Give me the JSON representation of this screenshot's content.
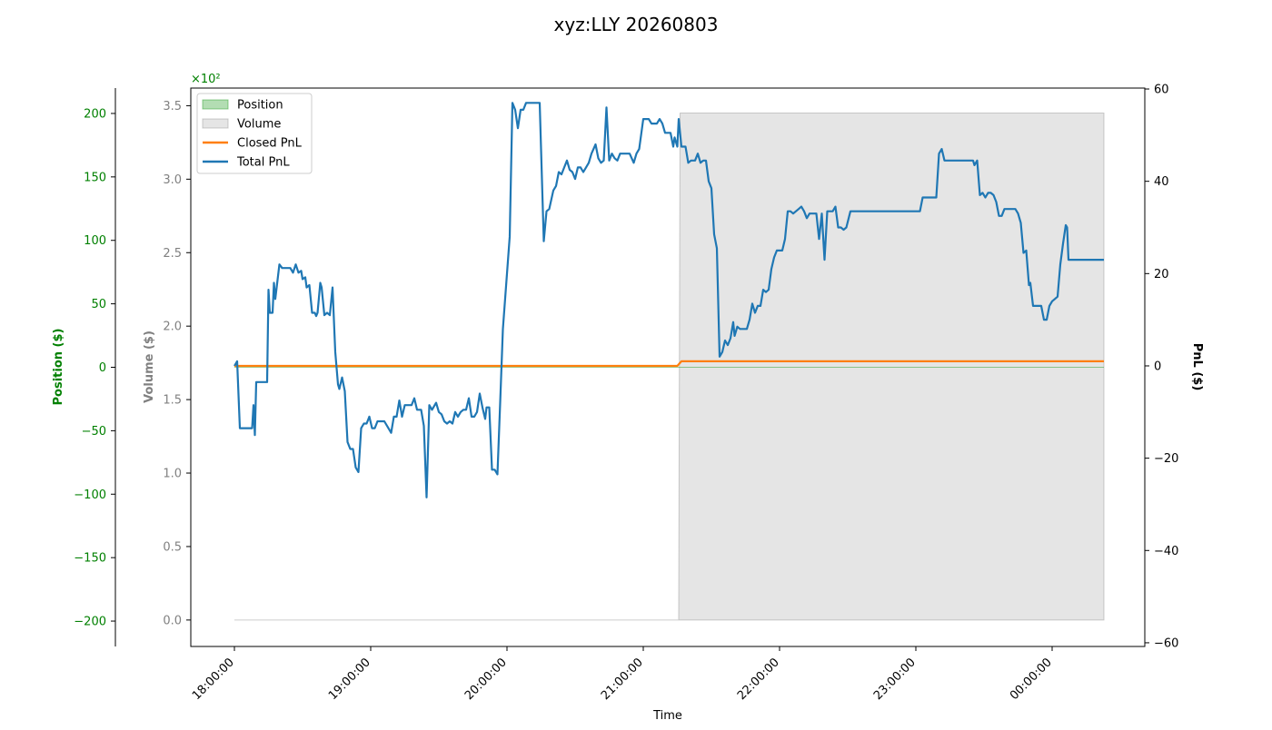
{
  "chart_data": {
    "type": "line",
    "title": "xyz:LLY 20260803",
    "xlabel": "Time",
    "x_ticks": [
      "18:00:00",
      "19:00:00",
      "20:00:00",
      "21:00:00",
      "22:00:00",
      "23:00:00",
      "00:00:00"
    ],
    "axes": {
      "position": {
        "label": "Position ($)",
        "ticks": [
          "200",
          "150",
          "100",
          "50",
          "0",
          "−50",
          "−100",
          "−150",
          "−200"
        ],
        "range": [
          -220,
          220
        ],
        "color": "#008000"
      },
      "volume": {
        "label": "Volume ($)",
        "ticks": [
          "3.5",
          "3.0",
          "2.5",
          "2.0",
          "1.5",
          "1.0",
          "0.5",
          "0.0"
        ],
        "offset_text": "×10²",
        "range": [
          -18,
          362
        ],
        "color": "#808080"
      },
      "pnl": {
        "label": "PnL ($)",
        "ticks": [
          "60",
          "40",
          "20",
          "0",
          "−20",
          "−40",
          "−60"
        ],
        "range": [
          -60.8,
          60.2
        ],
        "color": "#000000"
      }
    },
    "legend": {
      "placement": "top-left",
      "entries": [
        "Position",
        "Volume",
        "Closed PnL",
        "Total PnL"
      ]
    },
    "series": [
      {
        "name": "Position",
        "kind": "area",
        "axis": "position",
        "color": "#2ca02c",
        "points": [
          [
            18.0,
            0
          ],
          [
            21.26,
            0
          ],
          [
            21.3,
            0
          ],
          [
            24.38,
            0
          ]
        ]
      },
      {
        "name": "Volume",
        "kind": "area",
        "axis": "volume",
        "color": "#999999",
        "points": [
          [
            18.0,
            0
          ],
          [
            21.26,
            0
          ],
          [
            21.27,
            345
          ],
          [
            24.38,
            345
          ]
        ]
      },
      {
        "name": "Closed PnL",
        "kind": "line",
        "axis": "pnl",
        "color": "#ff7f0e",
        "points": [
          [
            18.0,
            0
          ],
          [
            21.25,
            0
          ],
          [
            21.28,
            1
          ],
          [
            24.38,
            1
          ]
        ]
      },
      {
        "name": "Total PnL",
        "kind": "line",
        "axis": "pnl",
        "color": "#1f77b4",
        "points": [
          [
            18.0,
            0
          ],
          [
            18.02,
            1
          ],
          [
            18.04,
            -13.5
          ],
          [
            18.13,
            -13.5
          ],
          [
            18.14,
            -8.5
          ],
          [
            18.15,
            -15
          ],
          [
            18.16,
            -3.5
          ],
          [
            18.24,
            -3.5
          ],
          [
            18.25,
            16.5
          ],
          [
            18.26,
            11.5
          ],
          [
            18.28,
            11.5
          ],
          [
            18.29,
            18
          ],
          [
            18.3,
            14.5
          ],
          [
            18.33,
            22
          ],
          [
            18.35,
            21.2
          ],
          [
            18.41,
            21.2
          ],
          [
            18.43,
            20.2
          ],
          [
            18.45,
            22
          ],
          [
            18.47,
            20.2
          ],
          [
            18.49,
            20.6
          ],
          [
            18.5,
            18.8
          ],
          [
            18.52,
            19.2
          ],
          [
            18.53,
            17
          ],
          [
            18.55,
            17.5
          ],
          [
            18.57,
            11.5
          ],
          [
            18.59,
            11.5
          ],
          [
            18.6,
            10.8
          ],
          [
            18.61,
            11.5
          ],
          [
            18.63,
            18
          ],
          [
            18.64,
            17
          ],
          [
            18.66,
            11
          ],
          [
            18.68,
            11.5
          ],
          [
            18.7,
            11
          ],
          [
            18.72,
            17
          ],
          [
            18.74,
            3
          ],
          [
            18.76,
            -4
          ],
          [
            18.77,
            -5
          ],
          [
            18.79,
            -2.5
          ],
          [
            18.81,
            -5.5
          ],
          [
            18.83,
            -16.5
          ],
          [
            18.85,
            -18
          ],
          [
            18.87,
            -18
          ],
          [
            18.89,
            -22
          ],
          [
            18.91,
            -23
          ],
          [
            18.93,
            -13.5
          ],
          [
            18.95,
            -12.5
          ],
          [
            18.97,
            -12.5
          ],
          [
            18.99,
            -11
          ],
          [
            19.01,
            -13.5
          ],
          [
            19.03,
            -13.5
          ],
          [
            19.05,
            -12
          ],
          [
            19.1,
            -12
          ],
          [
            19.13,
            -13.5
          ],
          [
            19.15,
            -14.5
          ],
          [
            19.17,
            -11
          ],
          [
            19.19,
            -11
          ],
          [
            19.21,
            -7.5
          ],
          [
            19.23,
            -11
          ],
          [
            19.25,
            -8.5
          ],
          [
            19.27,
            -8.5
          ],
          [
            19.3,
            -8.5
          ],
          [
            19.32,
            -7
          ],
          [
            19.34,
            -9.5
          ],
          [
            19.37,
            -9.5
          ],
          [
            19.39,
            -13
          ],
          [
            19.41,
            -28.5
          ],
          [
            19.43,
            -8.5
          ],
          [
            19.45,
            -9.5
          ],
          [
            19.48,
            -8
          ],
          [
            19.5,
            -10
          ],
          [
            19.52,
            -10.5
          ],
          [
            19.54,
            -12
          ],
          [
            19.56,
            -12.5
          ],
          [
            19.58,
            -12
          ],
          [
            19.6,
            -12.5
          ],
          [
            19.62,
            -10
          ],
          [
            19.64,
            -11
          ],
          [
            19.66,
            -10
          ],
          [
            19.68,
            -9.5
          ],
          [
            19.7,
            -9.5
          ],
          [
            19.72,
            -7
          ],
          [
            19.74,
            -11
          ],
          [
            19.76,
            -11
          ],
          [
            19.78,
            -10
          ],
          [
            19.8,
            -6
          ],
          [
            19.82,
            -9
          ],
          [
            19.84,
            -11.5
          ],
          [
            19.85,
            -9
          ],
          [
            19.87,
            -9
          ],
          [
            19.89,
            -22.5
          ],
          [
            19.91,
            -22.5
          ],
          [
            19.93,
            -23.5
          ],
          [
            19.95,
            -8
          ],
          [
            19.97,
            8
          ],
          [
            20.02,
            28
          ],
          [
            20.04,
            57
          ],
          [
            20.06,
            55.5
          ],
          [
            20.08,
            51.5
          ],
          [
            20.1,
            55.5
          ],
          [
            20.12,
            55.5
          ],
          [
            20.14,
            57
          ],
          [
            20.24,
            57
          ],
          [
            20.27,
            27
          ],
          [
            20.29,
            33.5
          ],
          [
            20.31,
            34
          ],
          [
            20.34,
            38
          ],
          [
            20.36,
            39
          ],
          [
            20.38,
            42
          ],
          [
            20.4,
            41.5
          ],
          [
            20.42,
            43
          ],
          [
            20.44,
            44.5
          ],
          [
            20.46,
            42.5
          ],
          [
            20.48,
            42
          ],
          [
            20.5,
            40.5
          ],
          [
            20.52,
            43
          ],
          [
            20.54,
            43
          ],
          [
            20.56,
            42
          ],
          [
            20.58,
            43
          ],
          [
            20.6,
            44
          ],
          [
            20.62,
            46
          ],
          [
            20.65,
            48
          ],
          [
            20.67,
            45
          ],
          [
            20.69,
            44
          ],
          [
            20.71,
            44.5
          ],
          [
            20.73,
            56
          ],
          [
            20.75,
            44.5
          ],
          [
            20.77,
            46
          ],
          [
            20.79,
            45
          ],
          [
            20.81,
            44.5
          ],
          [
            20.83,
            46
          ],
          [
            20.85,
            46
          ],
          [
            20.9,
            46
          ],
          [
            20.93,
            44
          ],
          [
            20.95,
            46
          ],
          [
            20.97,
            47
          ],
          [
            21.0,
            53.5
          ],
          [
            21.04,
            53.5
          ],
          [
            21.06,
            52.5
          ],
          [
            21.1,
            52.5
          ],
          [
            21.12,
            53.5
          ],
          [
            21.14,
            52.5
          ],
          [
            21.16,
            50.5
          ],
          [
            21.18,
            50.5
          ],
          [
            21.2,
            50.5
          ],
          [
            21.22,
            47.5
          ],
          [
            21.23,
            49.5
          ],
          [
            21.25,
            47.5
          ],
          [
            21.26,
            53.5
          ],
          [
            21.28,
            47.5
          ],
          [
            21.31,
            47.5
          ],
          [
            21.33,
            44
          ],
          [
            21.35,
            44.5
          ],
          [
            21.38,
            44.5
          ],
          [
            21.4,
            46
          ],
          [
            21.42,
            44
          ],
          [
            21.44,
            44.5
          ],
          [
            21.46,
            44.5
          ],
          [
            21.48,
            40
          ],
          [
            21.5,
            38.5
          ],
          [
            21.52,
            28.5
          ],
          [
            21.54,
            25.5
          ],
          [
            21.56,
            2
          ],
          [
            21.58,
            3
          ],
          [
            21.6,
            5.5
          ],
          [
            21.62,
            4.5
          ],
          [
            21.64,
            6
          ],
          [
            21.66,
            9.5
          ],
          [
            21.67,
            6.5
          ],
          [
            21.69,
            8.5
          ],
          [
            21.71,
            8
          ],
          [
            21.73,
            8
          ],
          [
            21.76,
            8
          ],
          [
            21.78,
            10
          ],
          [
            21.8,
            13.5
          ],
          [
            21.82,
            11.5
          ],
          [
            21.84,
            13
          ],
          [
            21.86,
            13
          ],
          [
            21.88,
            16.5
          ],
          [
            21.9,
            16
          ],
          [
            21.92,
            16.5
          ],
          [
            21.94,
            21
          ],
          [
            21.96,
            23.5
          ],
          [
            21.98,
            25
          ],
          [
            22.0,
            25
          ],
          [
            22.02,
            25
          ],
          [
            22.04,
            27.5
          ],
          [
            22.06,
            33.5
          ],
          [
            22.08,
            33.5
          ],
          [
            22.1,
            33
          ],
          [
            22.12,
            33.5
          ],
          [
            22.14,
            34
          ],
          [
            22.16,
            34.5
          ],
          [
            22.18,
            33.5
          ],
          [
            22.2,
            32
          ],
          [
            22.22,
            33
          ],
          [
            22.24,
            33
          ],
          [
            22.27,
            33
          ],
          [
            22.29,
            27.5
          ],
          [
            22.31,
            33
          ],
          [
            22.33,
            23
          ],
          [
            22.35,
            33.5
          ],
          [
            22.37,
            33.5
          ],
          [
            22.39,
            33.5
          ],
          [
            22.41,
            34.5
          ],
          [
            22.43,
            30
          ],
          [
            22.45,
            30
          ],
          [
            22.47,
            29.5
          ],
          [
            22.49,
            30
          ],
          [
            22.52,
            33.5
          ],
          [
            22.55,
            33.5
          ],
          [
            23.03,
            33.5
          ],
          [
            23.05,
            36.5
          ],
          [
            23.15,
            36.5
          ],
          [
            23.17,
            46
          ],
          [
            23.19,
            47
          ],
          [
            23.21,
            44.5
          ],
          [
            23.42,
            44.5
          ],
          [
            23.43,
            43.5
          ],
          [
            23.45,
            44.5
          ],
          [
            23.47,
            37
          ],
          [
            23.49,
            37.5
          ],
          [
            23.51,
            36.5
          ],
          [
            23.53,
            37.5
          ],
          [
            23.55,
            37.5
          ],
          [
            23.57,
            37
          ],
          [
            23.59,
            35.5
          ],
          [
            23.61,
            32.5
          ],
          [
            23.63,
            32.5
          ],
          [
            23.65,
            34
          ],
          [
            23.73,
            34
          ],
          [
            23.75,
            33
          ],
          [
            23.77,
            31
          ],
          [
            23.79,
            24.5
          ],
          [
            23.81,
            25
          ],
          [
            23.83,
            17.5
          ],
          [
            23.84,
            18
          ],
          [
            23.86,
            13
          ],
          [
            23.88,
            13
          ],
          [
            23.92,
            13
          ],
          [
            23.94,
            10
          ],
          [
            23.96,
            10
          ],
          [
            23.98,
            13
          ],
          [
            24.0,
            14
          ],
          [
            24.02,
            14.5
          ],
          [
            24.04,
            15
          ],
          [
            24.06,
            22
          ],
          [
            24.08,
            26.5
          ],
          [
            24.1,
            30.5
          ],
          [
            24.11,
            30
          ],
          [
            24.12,
            23
          ],
          [
            24.38,
            23
          ]
        ]
      }
    ]
  }
}
